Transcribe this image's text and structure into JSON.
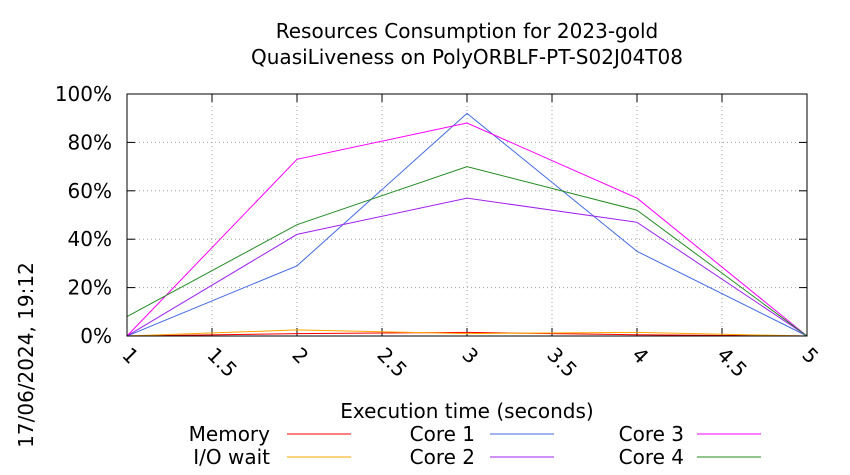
{
  "chart_data": {
    "type": "line",
    "title": "Resources Consumption for 2023-gold",
    "subtitle": "QuasiLiveness on PolyORBLF-PT-S02J04T08",
    "xlabel": "Execution time (seconds)",
    "ylabel": "",
    "timestamp": "17/06/2024, 19:12",
    "xlim": [
      1,
      5
    ],
    "ylim": [
      0,
      100
    ],
    "x_ticks": [
      "1",
      "1.5",
      "2",
      "2.5",
      "3",
      "3.5",
      "4",
      "4.5",
      "5"
    ],
    "y_ticks": [
      "0%",
      "20%",
      "40%",
      "60%",
      "80%",
      "100%"
    ],
    "grid": true,
    "legend_position": "bottom",
    "x": [
      1,
      2,
      3,
      4,
      5
    ],
    "series": [
      {
        "name": "Memory",
        "color": "#ff0000",
        "values": [
          0,
          1,
          1.5,
          0.5,
          0
        ]
      },
      {
        "name": "I/O wait",
        "color": "#ffa500",
        "values": [
          0,
          2.5,
          1,
          1.5,
          0
        ]
      },
      {
        "name": "Core 1",
        "color": "#4169e1",
        "values": [
          0,
          29,
          92,
          35,
          0
        ]
      },
      {
        "name": "Core 2",
        "color": "#a020f0",
        "values": [
          0,
          42,
          57,
          47,
          0
        ]
      },
      {
        "name": "Core 3",
        "color": "#ff00ff",
        "values": [
          0,
          73,
          88,
          57,
          0
        ]
      },
      {
        "name": "Core 4",
        "color": "#228b22",
        "values": [
          8,
          46,
          70,
          52,
          0
        ]
      }
    ]
  }
}
